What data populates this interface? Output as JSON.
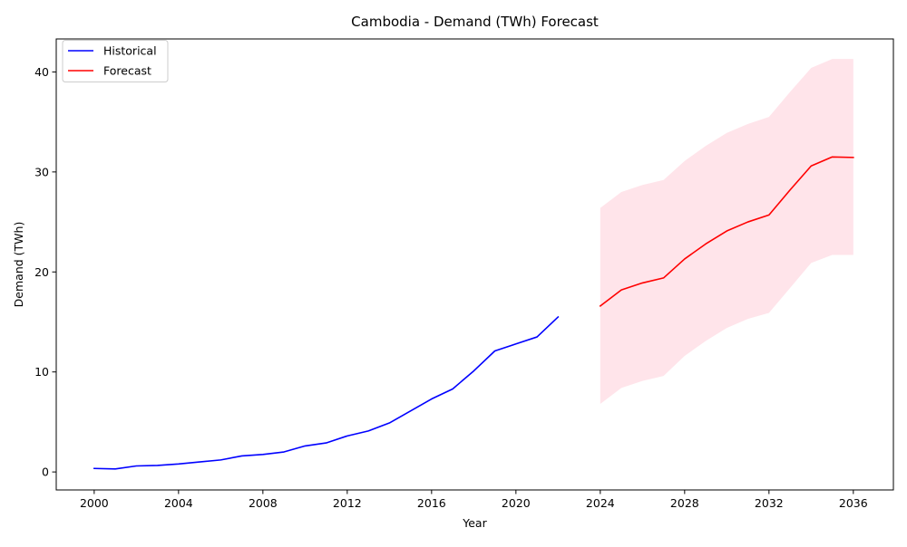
{
  "chart_data": {
    "type": "line",
    "title": "Cambodia - Demand (TWh) Forecast",
    "xlabel": "Year",
    "ylabel": "Demand (TWh)",
    "xlim": [
      1998.2,
      2037.9
    ],
    "ylim": [
      -1.8,
      43.3
    ],
    "x_ticks": [
      2000,
      2004,
      2008,
      2012,
      2016,
      2020,
      2024,
      2028,
      2032,
      2036
    ],
    "y_ticks": [
      0,
      10,
      20,
      30,
      40
    ],
    "grid": false,
    "legend_position": "upper-left",
    "series": [
      {
        "name": "Historical",
        "color": "#0000ff",
        "x": [
          2000,
          2001,
          2002,
          2003,
          2004,
          2005,
          2006,
          2007,
          2008,
          2009,
          2010,
          2011,
          2012,
          2013,
          2014,
          2015,
          2016,
          2017,
          2018,
          2019,
          2020,
          2021,
          2022
        ],
        "y": [
          0.35,
          0.3,
          0.6,
          0.65,
          0.8,
          1.0,
          1.2,
          1.6,
          1.75,
          2.0,
          2.6,
          2.9,
          3.6,
          4.1,
          4.9,
          6.1,
          7.3,
          8.3,
          10.1,
          12.1,
          12.8,
          13.5,
          15.5
        ]
      },
      {
        "name": "Forecast",
        "color": "#ff0000",
        "x": [
          2024,
          2025,
          2026,
          2027,
          2028,
          2029,
          2030,
          2031,
          2032,
          2033,
          2034,
          2035,
          2036
        ],
        "y": [
          16.6,
          18.2,
          18.9,
          19.4,
          21.3,
          22.8,
          24.1,
          25.0,
          25.7,
          28.2,
          30.6,
          31.5,
          31.45
        ]
      }
    ],
    "confidence_band": {
      "color": "#ffe4ea",
      "x": [
        2024,
        2025,
        2026,
        2027,
        2028,
        2029,
        2030,
        2031,
        2032,
        2033,
        2034,
        2035,
        2036
      ],
      "lower": [
        6.8,
        8.4,
        9.1,
        9.6,
        11.6,
        13.1,
        14.4,
        15.3,
        15.9,
        18.4,
        20.9,
        21.7,
        21.7
      ],
      "upper": [
        26.4,
        28.0,
        28.7,
        29.2,
        31.1,
        32.6,
        33.9,
        34.8,
        35.5,
        38.0,
        40.4,
        41.3,
        41.3
      ]
    }
  }
}
